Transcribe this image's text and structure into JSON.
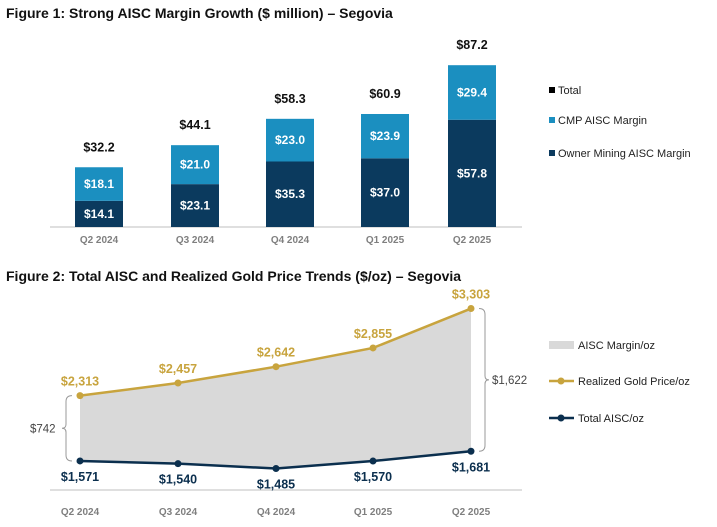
{
  "figure1": {
    "title": "Figure 1: Strong AISC Margin Growth ($ million) – Segovia",
    "chart_data": {
      "type": "bar",
      "stacked": true,
      "title": "Figure 1: Strong AISC Margin Growth ($ million) – Segovia",
      "categories": [
        "Q2 2024",
        "Q3 2024",
        "Q4 2024",
        "Q1 2025",
        "Q2 2025"
      ],
      "series": [
        {
          "name": "Owner Mining AISC Margin",
          "values": [
            14.1,
            23.1,
            35.3,
            37.0,
            57.8
          ],
          "labels": [
            "$14.1",
            "$23.1",
            "$35.3",
            "$37.0",
            "$57.8"
          ],
          "color": "#0b3a5e"
        },
        {
          "name": "CMP AISC Margin",
          "values": [
            18.1,
            21.0,
            23.0,
            23.9,
            29.4
          ],
          "labels": [
            "$18.1",
            "$21.0",
            "$23.0",
            "$23.9",
            "$29.4"
          ],
          "color": "#1b8fc0"
        }
      ],
      "totals": {
        "name": "Total",
        "values": [
          32.2,
          44.1,
          58.3,
          60.9,
          87.2
        ],
        "labels": [
          "$32.2",
          "$44.1",
          "$58.3",
          "$60.9",
          "$87.2"
        ],
        "color": "#000000"
      },
      "ylim": [
        0,
        90
      ],
      "grid": false,
      "legend": "right"
    }
  },
  "figure2": {
    "title": "Figure 2: Total AISC and Realized Gold Price Trends ($/oz) – Segovia",
    "chart_data": {
      "type": "line",
      "title": "Figure 2: Total AISC and Realized Gold Price Trends ($/oz) – Segovia",
      "categories": [
        "Q2 2024",
        "Q3 2024",
        "Q4 2024",
        "Q1 2025",
        "Q2 2025"
      ],
      "series": [
        {
          "name": "Realized Gold Price/oz",
          "values": [
            2313,
            2457,
            2642,
            2855,
            3303
          ],
          "labels": [
            "$2,313",
            "$2,457",
            "$2,642",
            "$2,855",
            "$3,303"
          ],
          "color": "#c8a43e"
        },
        {
          "name": "Total AISC/oz",
          "values": [
            1571,
            1540,
            1485,
            1570,
            1681
          ],
          "labels": [
            "$1,571",
            "$1,540",
            "$1,485",
            "$1,570",
            "$1,681"
          ],
          "color": "#0b2f4e"
        }
      ],
      "area": {
        "name": "AISC Margin/oz",
        "color": "#d9d9d9"
      },
      "annotations": [
        {
          "category": "Q2 2024",
          "value": 742,
          "label": "$742"
        },
        {
          "category": "Q2 2025",
          "value": 1622,
          "label": "$1,622"
        }
      ],
      "ylim": [
        1400,
        3400
      ],
      "grid": false,
      "legend": "right"
    }
  }
}
